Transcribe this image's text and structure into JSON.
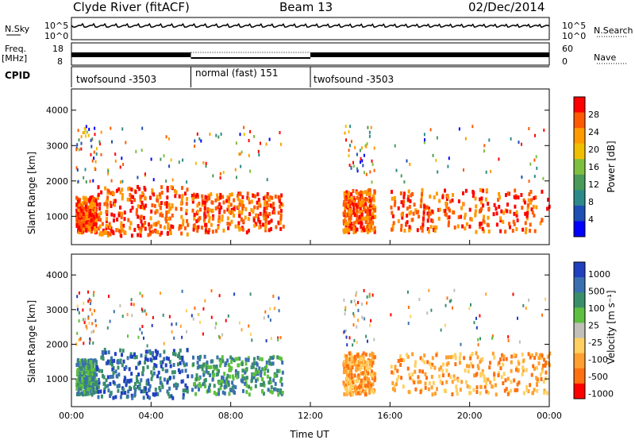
{
  "header": {
    "station": "Clyde River (fitACF)",
    "beam": "Beam 13",
    "date": "02/Dec/2014"
  },
  "panels": {
    "nsky_label": "N.Sky",
    "nsearch_label": "N.Search",
    "freq_label": "Freq.",
    "freq_unit": "[MHz]",
    "nave_label": "Nave",
    "cpid_label": "CPID",
    "nsky_ticks": [
      "10^5",
      "10^0"
    ],
    "nsearch_ticks": [
      "10^5",
      "10^0"
    ],
    "freq_ticks": [
      "18",
      "8"
    ],
    "nave_ticks": [
      "60",
      "0"
    ]
  },
  "cpid_segments": [
    {
      "label": "twofsound -3503",
      "start_h": 0,
      "end_h": 6
    },
    {
      "label": "normal (fast) 151",
      "start_h": 6,
      "end_h": 12
    },
    {
      "label": "twofsound -3503",
      "start_h": 12,
      "end_h": 24
    }
  ],
  "colors": {
    "power_scale": [
      "#0000ff",
      "#1e4fb4",
      "#2e8a8a",
      "#4a9a5a",
      "#7fbf3f",
      "#f0c000",
      "#ff9a00",
      "#ff5a00",
      "#ff0000"
    ],
    "velocity_scale": [
      "#2040c0",
      "#3a70b0",
      "#3a8f6a",
      "#5fbf40",
      "#c0c0b8",
      "#ffd060",
      "#ffa030",
      "#ff7010",
      "#ff0000"
    ]
  },
  "chart_data": [
    {
      "type": "heatmap",
      "title": "",
      "xlabel": "",
      "ylabel": "Slant Range [km]",
      "xlim": [
        0,
        24
      ],
      "ylim": [
        200,
        4600
      ],
      "y_ticks": [
        "1000",
        "2000",
        "3000",
        "4000"
      ],
      "colorbar": {
        "label": "Power [dB]",
        "ticks": [
          "4",
          "8",
          "12",
          "16",
          "20",
          "24",
          "28"
        ]
      }
    },
    {
      "type": "heatmap",
      "title": "",
      "xlabel": "Time UT",
      "ylabel": "Slant Range [km]",
      "xlim": [
        0,
        24
      ],
      "ylim": [
        200,
        4600
      ],
      "x_ticks": [
        "00:00",
        "04:00",
        "08:00",
        "12:00",
        "16:00",
        "20:00",
        "00:00"
      ],
      "y_ticks": [
        "1000",
        "2000",
        "3000",
        "4000"
      ],
      "colorbar": {
        "label": "Velocity [m s⁻¹]",
        "ticks": [
          "1000",
          "500",
          "100",
          "25",
          "-25",
          "-100",
          "-500",
          "-1000"
        ]
      }
    }
  ]
}
